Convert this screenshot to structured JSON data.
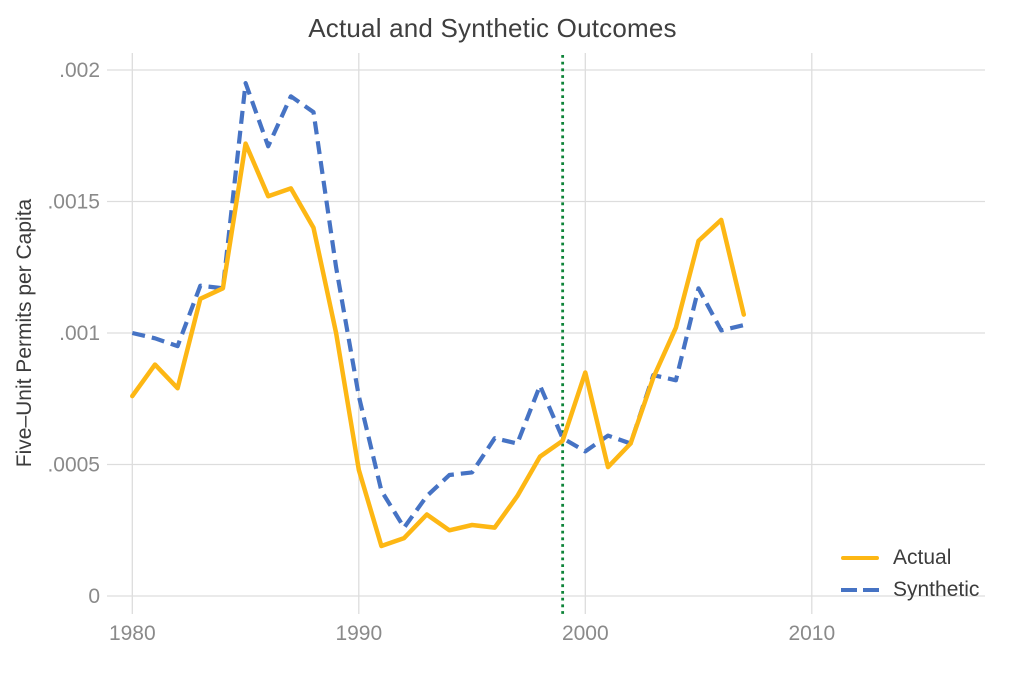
{
  "title": "Actual and Synthetic Outcomes",
  "colors": {
    "actual": "#FDB714",
    "synthetic": "#4673C4",
    "treatment_line": "#0E8439",
    "grid": "#DDDDDD",
    "tick_text": "#8A8A8A",
    "title_text": "#3F3F3F",
    "background": "#FFFFFF"
  },
  "legend": {
    "actual_label": "Actual",
    "synthetic_label": "Synthetic",
    "position": "bottom-right"
  },
  "chart_data": {
    "type": "line",
    "title": "Actual and Synthetic Outcomes",
    "xlabel": "",
    "ylabel": "Five–Unit Permits per Capita",
    "x": [
      1980,
      1981,
      1982,
      1983,
      1984,
      1985,
      1986,
      1987,
      1988,
      1989,
      1990,
      1991,
      1992,
      1993,
      1994,
      1995,
      1996,
      1997,
      1998,
      1999,
      2000,
      2001,
      2002,
      2003,
      2004,
      2005,
      2006,
      2007
    ],
    "series": [
      {
        "name": "Actual",
        "color": "#FDB714",
        "style": "solid",
        "values": [
          0.00076,
          0.00088,
          0.00079,
          0.00113,
          0.00117,
          0.00172,
          0.00152,
          0.00155,
          0.0014,
          0.001,
          0.00048,
          0.00019,
          0.00022,
          0.00031,
          0.00025,
          0.00027,
          0.00026,
          0.00038,
          0.00053,
          0.00059,
          0.00085,
          0.00049,
          0.00058,
          0.00083,
          0.00102,
          0.00135,
          0.00143,
          0.00107
        ]
      },
      {
        "name": "Synthetic",
        "color": "#4673C4",
        "style": "dashed",
        "values": [
          0.001,
          0.00098,
          0.00095,
          0.00118,
          0.00117,
          0.00195,
          0.00171,
          0.0019,
          0.00184,
          0.00125,
          0.00076,
          0.0004,
          0.00026,
          0.00038,
          0.00046,
          0.00047,
          0.0006,
          0.00058,
          0.0008,
          0.0006,
          0.00055,
          0.00061,
          0.00058,
          0.00084,
          0.00082,
          0.00117,
          0.00101,
          0.00103
        ]
      }
    ],
    "vline": {
      "x": 1999,
      "style": "dotted",
      "color": "#0E8439"
    },
    "x_ticks": [
      1980,
      1990,
      2000,
      2010
    ],
    "x_tick_labels": [
      "1980",
      "1990",
      "2000",
      "2010"
    ],
    "y_ticks": [
      0,
      0.0005,
      0.001,
      0.0015,
      0.002
    ],
    "y_tick_labels": [
      "0",
      ".0005",
      ".001",
      ".0015",
      ".002"
    ],
    "xlim": [
      1980,
      2010
    ],
    "ylim": [
      0,
      0.002
    ],
    "grid": true,
    "legend_position": "bottom-right"
  }
}
